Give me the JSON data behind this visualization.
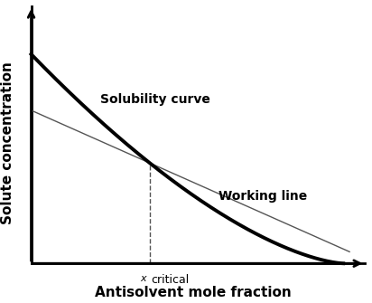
{
  "title": "",
  "xlabel": "Antisolvent mole fraction",
  "ylabel": "Solute concentration",
  "solubility_label": "Solubility curve",
  "working_label": "Working line",
  "xcritical": 0.38,
  "solubility_color": "#000000",
  "solubility_lw": 2.8,
  "working_color": "#555555",
  "working_lw": 1.0,
  "dashed_color": "#555555",
  "dashed_lw": 1.0,
  "background_color": "#ffffff",
  "label_fontsize": 10,
  "axis_label_fontsize": 11
}
